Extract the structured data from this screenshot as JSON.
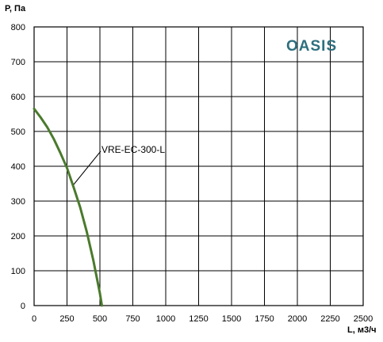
{
  "chart_data": {
    "type": "line",
    "title": "",
    "xlabel": "L, м3/ч",
    "ylabel": "P, Па",
    "xlim": [
      0,
      2500
    ],
    "ylim": [
      0,
      800
    ],
    "x_ticks": [
      "0",
      "250",
      "500",
      "750",
      "1000",
      "1250",
      "1500",
      "1750",
      "2000",
      "2250",
      "2500"
    ],
    "y_ticks": [
      "0",
      "100",
      "200",
      "300",
      "400",
      "500",
      "600",
      "700",
      "800"
    ],
    "grid": true,
    "legend": "none",
    "brand": "OASIS",
    "series": [
      {
        "name": "VRE-EC-300-L",
        "color": "#4a7a2c",
        "x": [
          0,
          50,
          100,
          150,
          200,
          250,
          300,
          350,
          400,
          450,
          500,
          515
        ],
        "y": [
          565,
          540,
          512,
          478,
          438,
          395,
          340,
          282,
          212,
          130,
          35,
          0
        ]
      }
    ]
  },
  "colors": {
    "brand": "#2e6f7e",
    "grid": "#000000",
    "series": "#4a7a2c"
  }
}
